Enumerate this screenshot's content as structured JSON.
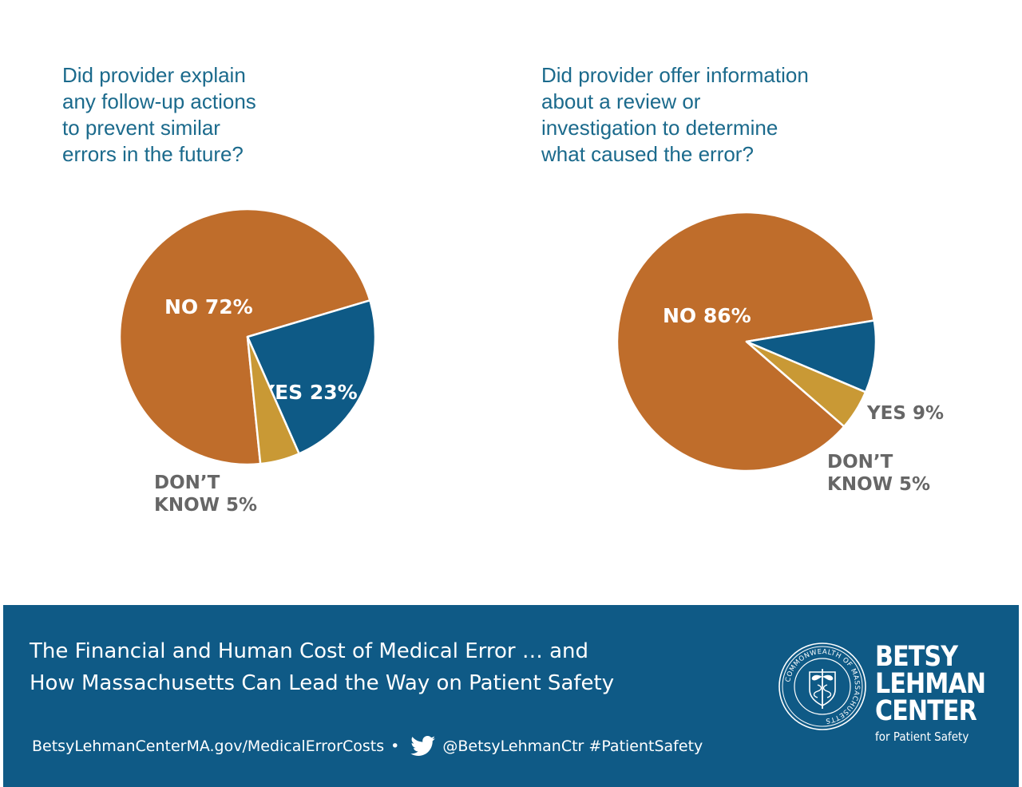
{
  "chart_data": [
    {
      "type": "pie",
      "title": "Did provider explain\nany follow-up actions\nto prevent similar\nerrors in the future?",
      "slices": [
        {
          "name": "NO",
          "value": 72,
          "label": "NO 72%",
          "color": "#bf6d2b"
        },
        {
          "name": "YES",
          "value": 23,
          "label": "YES 23%",
          "color": "#0e5a86"
        },
        {
          "name": "DON’T KNOW",
          "value": 5,
          "label_lines": [
            "DON’T",
            "KNOW 5%"
          ],
          "color": "#c99935"
        }
      ]
    },
    {
      "type": "pie",
      "title": "Did provider offer information\nabout a review or\ninvestigation to determine\nwhat caused the error?",
      "slices": [
        {
          "name": "NO",
          "value": 86,
          "label": "NO 86%",
          "color": "#bf6d2b"
        },
        {
          "name": "YES",
          "value": 9,
          "label": "YES 9%",
          "color": "#0e5a86"
        },
        {
          "name": "DON’T KNOW",
          "value": 5,
          "label_lines": [
            "DON’T",
            "KNOW 5%"
          ],
          "color": "#c99935"
        }
      ]
    }
  ],
  "footer": {
    "title": "The Financial and Human Cost of Medical Error … and\nHow Massachusetts Can Lead the Way on Patient Safety",
    "website": "BetsyLehmanCenterMA.gov/MedicalErrorCosts",
    "bullet": "•",
    "social": "@BetsyLehmanCtr #PatientSafety",
    "icons": {
      "social": "twitter-bird-icon",
      "seal": "massachusetts-seal-icon"
    },
    "seal_text": "COMMONWEALTH OF MASSACHUSETTS",
    "brand": {
      "line1": "BETSY",
      "line2": "LEHMAN",
      "line3": "CENTER",
      "sub": "for Patient Safety"
    }
  }
}
